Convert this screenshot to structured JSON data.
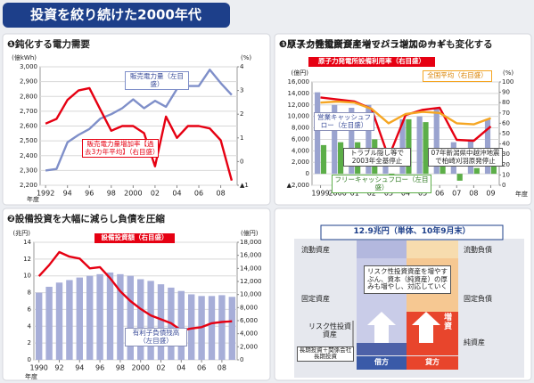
{
  "title": "投資を絞り続けた2000年代",
  "chart_data": [
    {
      "type": "line",
      "title": "❶鈍化する電力需要",
      "y_label": "(億kWh)",
      "y2_label": "(%)",
      "x_label": "年度",
      "x": [
        1992,
        1993,
        1994,
        1995,
        1996,
        1997,
        1998,
        1999,
        2000,
        2001,
        2002,
        2003,
        2004,
        2005,
        2006,
        2007,
        2008,
        2009
      ],
      "xlim": [
        1991.5,
        2009.5
      ],
      "xticks": [
        1992,
        {
          "value": 1994,
          "label": "94"
        },
        {
          "value": 1996,
          "label": "96"
        },
        {
          "value": 1998,
          "label": "98"
        },
        2000,
        {
          "value": 2002,
          "label": "02"
        },
        {
          "value": 2004,
          "label": "04"
        },
        {
          "value": 2006,
          "label": "06"
        },
        {
          "value": 2008,
          "label": "08"
        }
      ],
      "ylim": [
        2200,
        3000
      ],
      "yticks": [
        {
          "value": 2200,
          "label": "2,200"
        },
        {
          "value": 2300,
          "label": "2,300"
        },
        {
          "value": 2400,
          "label": "2,400"
        },
        {
          "value": 2500,
          "label": "2,500"
        },
        {
          "value": 2600,
          "label": "2,600"
        },
        {
          "value": 2700,
          "label": "2,700"
        },
        {
          "value": 2800,
          "label": "2,800"
        },
        {
          "value": 2900,
          "label": "2,900"
        },
        {
          "value": 3000,
          "label": "3,000"
        }
      ],
      "y2lim": [
        -1,
        4
      ],
      "y2ticks": [
        {
          "value": -1,
          "label": "▲1"
        },
        0,
        1,
        2,
        3,
        4
      ],
      "grid": true,
      "series": [
        {
          "name": "販売電力量（左目盛）",
          "color": "#7f8fc9",
          "values": [
            2300,
            2310,
            2490,
            2540,
            2580,
            2650,
            2680,
            2720,
            2780,
            2720,
            2770,
            2730,
            2850,
            2870,
            2870,
            2980,
            2890,
            2810
          ]
        },
        {
          "name": "販売電力量増加率【過去3カ年平均】（右目盛）",
          "color": "#e60012",
          "axis": "y2",
          "values": [
            1.6,
            1.8,
            2.6,
            3.0,
            3.1,
            2.2,
            1.3,
            1.5,
            1.5,
            1.2,
            -0.2,
            1.9,
            1.0,
            1.5,
            1.5,
            1.4,
            0.9,
            -0.8
          ]
        }
      ]
    },
    {
      "type": "bar",
      "title": "❸原子力発電所がキャッシュ増加のカギ",
      "y_label": "(億円)",
      "y2_label": "(%)",
      "x_label": "年度",
      "x": [
        1999,
        2000,
        2001,
        2002,
        2003,
        2004,
        2005,
        2006,
        2007,
        2008,
        2009
      ],
      "xlim": [
        1998.5,
        2009.5
      ],
      "xticks": [
        1999,
        2000,
        {
          "value": 2001,
          "label": "01"
        },
        {
          "value": 2002,
          "label": "02"
        },
        {
          "value": 2003,
          "label": "03"
        },
        {
          "value": 2004,
          "label": "04"
        },
        {
          "value": 2005,
          "label": "05"
        },
        {
          "value": 2006,
          "label": "06"
        },
        {
          "value": 2007,
          "label": "07"
        },
        {
          "value": 2008,
          "label": "08"
        },
        {
          "value": 2009,
          "label": "09"
        }
      ],
      "ylim": [
        -2000,
        16000
      ],
      "yticks": [
        {
          "value": -2000,
          "label": "▲2,000"
        },
        0,
        {
          "value": 2000,
          "label": "2,000"
        },
        {
          "value": 4000,
          "label": "4,000"
        },
        {
          "value": 6000,
          "label": "6,000"
        },
        {
          "value": 8000,
          "label": "8,000"
        },
        {
          "value": 10000,
          "label": "10,000"
        },
        {
          "value": 12000,
          "label": "12,000"
        },
        {
          "value": 14000,
          "label": "14,000"
        },
        {
          "value": 16000,
          "label": "16,000"
        }
      ],
      "y2lim": [
        0,
        100
      ],
      "y2ticks": [
        0,
        10,
        20,
        30,
        40,
        50,
        60,
        70,
        80,
        90,
        100
      ],
      "grid": true,
      "series": [
        {
          "name": "営業キャッシュフロー（左目盛）",
          "color": "#9aa3cf",
          "values": [
            14200,
            12000,
            11500,
            12000,
            3500,
            9500,
            10000,
            11500,
            5500,
            6000,
            9500
          ]
        },
        {
          "name": "フリーキャッシュフロー（左目盛）",
          "color": "#5cae48",
          "values": [
            5000,
            5500,
            5500,
            6000,
            -500,
            9500,
            9000,
            4000,
            -1200,
            1000,
            2500
          ]
        },
        {
          "name": "原子力発電所設備利用率（右目盛）",
          "color": "#e60012",
          "axis": "y2",
          "type": "line",
          "values": [
            85,
            83,
            81,
            74,
            27,
            68,
            73,
            75,
            44,
            43,
            57
          ]
        },
        {
          "name": "全国平均（右目盛）",
          "color": "#f5a623",
          "axis": "y2",
          "type": "line",
          "values": [
            80,
            81,
            80,
            74,
            60,
            69,
            71,
            70,
            60,
            59,
            65
          ]
        }
      ],
      "annotations": [
        "トラブル隠し等で2003年全基停止",
        "07年新潟県中越沖地震で柏崎刈羽原発停止"
      ]
    },
    {
      "type": "bar",
      "title": "❷設備投資を大幅に減らし負債を圧縮",
      "y_label": "(兆円)",
      "y2_label": "(億円)",
      "x_label": "年度",
      "x": [
        1990,
        1991,
        1992,
        1993,
        1994,
        1995,
        1996,
        1997,
        1998,
        1999,
        2000,
        2001,
        2002,
        2003,
        2004,
        2005,
        2006,
        2007,
        2008,
        2009
      ],
      "xlim": [
        1989.5,
        2009.5
      ],
      "xticks": [
        1990,
        {
          "value": 1992,
          "label": "92"
        },
        {
          "value": 1994,
          "label": "94"
        },
        {
          "value": 1996,
          "label": "96"
        },
        {
          "value": 1998,
          "label": "98"
        },
        2000,
        {
          "value": 2002,
          "label": "02"
        },
        {
          "value": 2004,
          "label": "04"
        },
        {
          "value": 2006,
          "label": "06"
        },
        {
          "value": 2008,
          "label": "08"
        }
      ],
      "ylim": [
        0,
        14
      ],
      "yticks": [
        0,
        2,
        4,
        6,
        8,
        10,
        12,
        14
      ],
      "y2lim": [
        0,
        18000
      ],
      "y2ticks": [
        0,
        {
          "value": 2000,
          "label": "2,000"
        },
        {
          "value": 4000,
          "label": "4,000"
        },
        {
          "value": 6000,
          "label": "6,000"
        },
        {
          "value": 8000,
          "label": "8,000"
        },
        {
          "value": 10000,
          "label": "10,000"
        },
        {
          "value": 12000,
          "label": "12,000"
        },
        {
          "value": 14000,
          "label": "14,000"
        },
        {
          "value": 16000,
          "label": "16,000"
        },
        {
          "value": 18000,
          "label": "18,000"
        }
      ],
      "grid": true,
      "series": [
        {
          "name": "有利子負債残高（左目盛）",
          "color": "#a7aed8",
          "values": [
            8.0,
            8.7,
            9.2,
            9.5,
            9.8,
            10.0,
            10.2,
            10.4,
            10.2,
            10.0,
            9.6,
            9.4,
            9.0,
            8.6,
            8.2,
            7.8,
            7.6,
            7.6,
            7.7,
            7.5
          ]
        },
        {
          "name": "設備投資額（右目盛）",
          "color": "#e60012",
          "axis": "y2",
          "type": "line",
          "values": [
            12800,
            14500,
            16500,
            15800,
            15500,
            14000,
            14200,
            12500,
            10500,
            9000,
            7800,
            6800,
            6200,
            5600,
            4500,
            4800,
            5000,
            5600,
            5800,
            5900
          ]
        }
      ]
    }
  ],
  "balance_sheet": {
    "title": "❹リスク性投資資産増でバランスシートも変化する",
    "total": "12.9兆円（単体、10年9月末）",
    "assets": [
      "流動資産",
      "固定資産",
      "リスク性投資資産",
      "長期投資＋関係会社長期投資"
    ],
    "liabilities": [
      "流動負債",
      "固定負債",
      "純資産"
    ],
    "debit": "借方",
    "credit": "貸方",
    "note": "リスク性投資資産を増やすぶん、資本（純資産）の厚みも増やし、対応していく",
    "capital_increase": "増資"
  }
}
